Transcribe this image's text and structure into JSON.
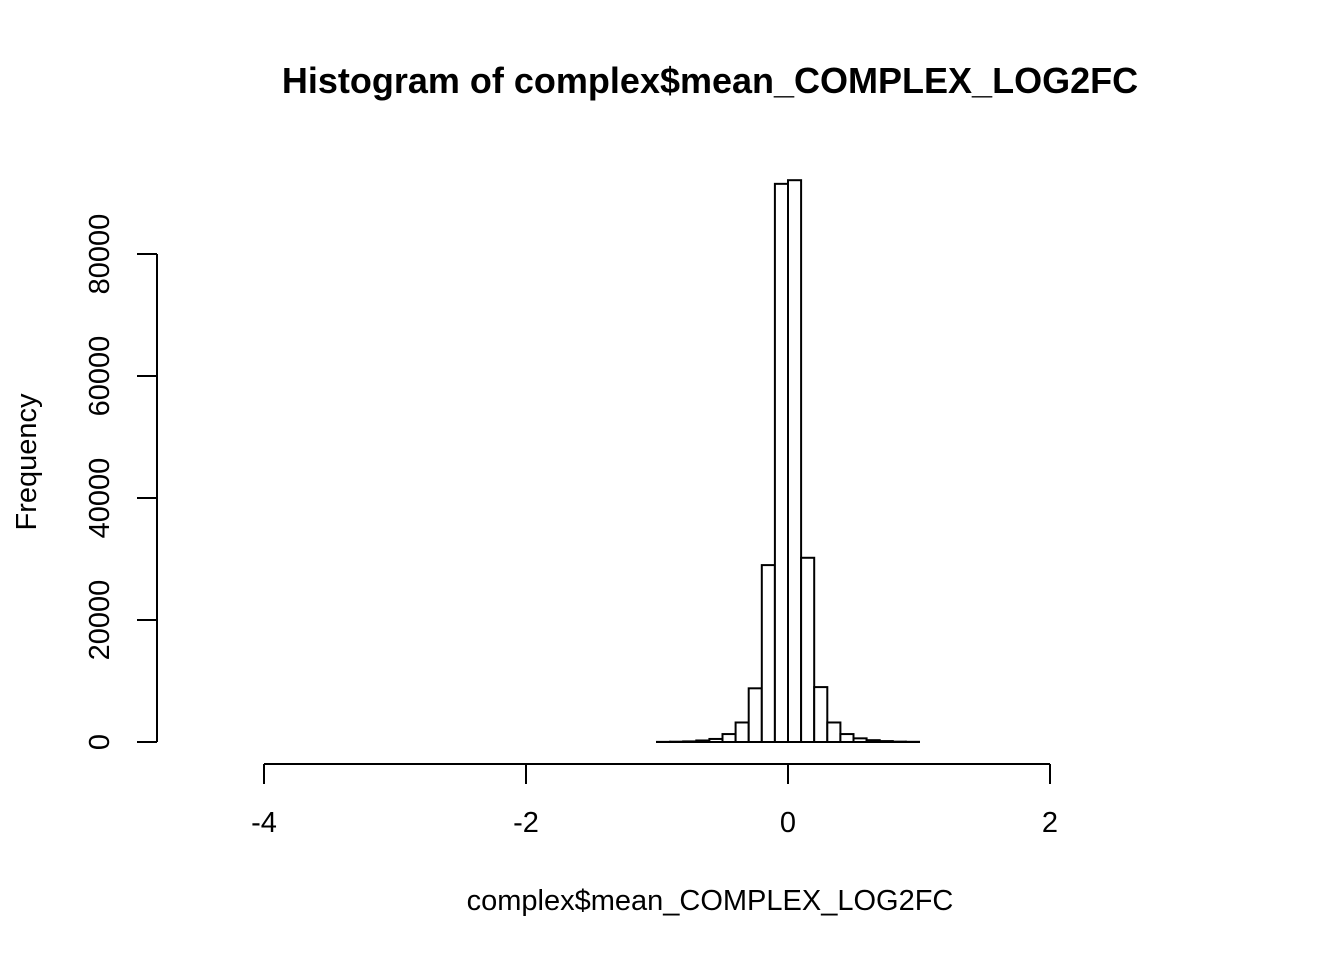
{
  "chart_data": {
    "type": "bar",
    "subtype": "histogram",
    "title": "Histogram of complex$mean_COMPLEX_LOG2FC",
    "xlabel": "complex$mean_COMPLEX_LOG2FC",
    "ylabel": "Frequency",
    "xlim": [
      -4.5,
      3.3
    ],
    "ylim": [
      0,
      92000
    ],
    "x_ticks": [
      -4,
      -2,
      0,
      2
    ],
    "x_tick_labels": [
      "-4",
      "-2",
      "0",
      "2"
    ],
    "y_ticks": [
      0,
      20000,
      40000,
      60000,
      80000
    ],
    "y_tick_labels": [
      "0",
      "20000",
      "40000",
      "60000",
      "80000"
    ],
    "bin_width": 0.1,
    "bins": [
      {
        "start": -4.5,
        "end": -1.0,
        "count": 0
      },
      {
        "start": -1.0,
        "end": -0.9,
        "count": 20
      },
      {
        "start": -0.9,
        "end": -0.8,
        "count": 50
      },
      {
        "start": -0.8,
        "end": -0.7,
        "count": 100
      },
      {
        "start": -0.7,
        "end": -0.6,
        "count": 250
      },
      {
        "start": -0.6,
        "end": -0.5,
        "count": 500
      },
      {
        "start": -0.5,
        "end": -0.4,
        "count": 1300
      },
      {
        "start": -0.4,
        "end": -0.3,
        "count": 3200
      },
      {
        "start": -0.3,
        "end": -0.2,
        "count": 8800
      },
      {
        "start": -0.2,
        "end": -0.1,
        "count": 29000
      },
      {
        "start": -0.1,
        "end": 0.0,
        "count": 91500
      },
      {
        "start": 0.0,
        "end": 0.1,
        "count": 92100
      },
      {
        "start": 0.1,
        "end": 0.2,
        "count": 30200
      },
      {
        "start": 0.2,
        "end": 0.3,
        "count": 9000
      },
      {
        "start": 0.3,
        "end": 0.4,
        "count": 3200
      },
      {
        "start": 0.4,
        "end": 0.5,
        "count": 1300
      },
      {
        "start": 0.5,
        "end": 0.6,
        "count": 600
      },
      {
        "start": 0.6,
        "end": 0.7,
        "count": 300
      },
      {
        "start": 0.7,
        "end": 0.8,
        "count": 150
      },
      {
        "start": 0.8,
        "end": 0.9,
        "count": 60
      },
      {
        "start": 0.9,
        "end": 1.0,
        "count": 30
      },
      {
        "start": 1.0,
        "end": 3.3,
        "count": 0
      }
    ],
    "grid": false,
    "legend": "none",
    "colors": {
      "bar_fill": "#ffffff",
      "bar_stroke": "#000000"
    }
  }
}
